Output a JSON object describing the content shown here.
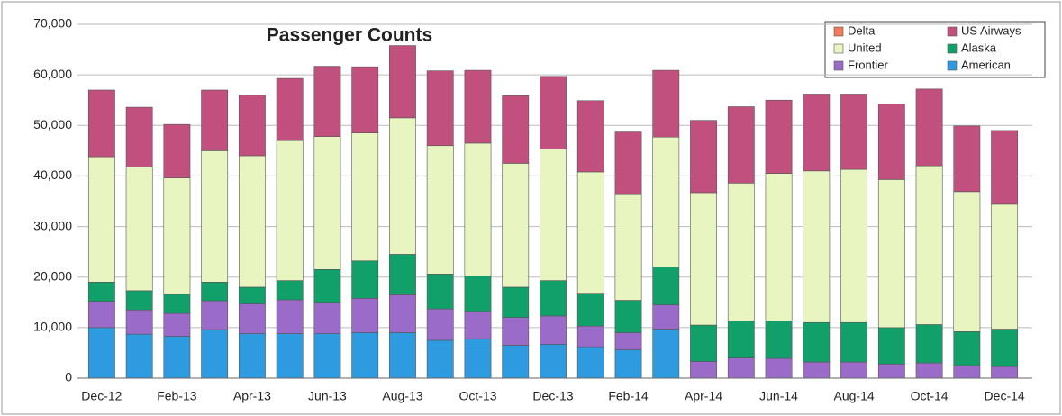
{
  "chart_data": {
    "type": "bar",
    "stacked": true,
    "title": "Passenger Counts",
    "categories": [
      "Dec-12",
      null,
      "Feb-13",
      null,
      "Apr-13",
      null,
      "Jun-13",
      null,
      "Aug-13",
      null,
      "Oct-13",
      null,
      "Dec-13",
      null,
      "Feb-14",
      null,
      "Apr-14",
      null,
      "Jun-14",
      null,
      "Aug-14",
      null,
      "Oct-14",
      null,
      "Dec-14"
    ],
    "series": [
      {
        "name": "American",
        "color": "#2e9be0",
        "values": [
          10000,
          8700,
          8300,
          9600,
          8800,
          8800,
          8800,
          9000,
          9000,
          7500,
          7800,
          6500,
          6700,
          6200,
          5600,
          9700,
          0,
          0,
          0,
          0,
          0,
          0,
          0,
          0,
          0
        ]
      },
      {
        "name": "Frontier",
        "color": "#9b6bc9",
        "values": [
          5200,
          4800,
          4500,
          5700,
          5900,
          6700,
          6200,
          6800,
          7500,
          6200,
          5400,
          5500,
          5600,
          4100,
          3400,
          4800,
          3300,
          4000,
          3900,
          3200,
          3200,
          2800,
          3000,
          2500,
          2300
        ]
      },
      {
        "name": "Alaska",
        "color": "#12a06a",
        "values": [
          3800,
          3800,
          3800,
          3700,
          3300,
          3800,
          6500,
          7400,
          8000,
          6900,
          7000,
          6000,
          7000,
          6500,
          6400,
          7500,
          7200,
          7300,
          7400,
          7800,
          7800,
          7200,
          7600,
          6700,
          7400
        ]
      },
      {
        "name": "United",
        "color": "#e8f5c0",
        "values": [
          24800,
          24500,
          23000,
          26000,
          26000,
          27700,
          26300,
          25300,
          27000,
          25400,
          26300,
          24500,
          26000,
          24000,
          20900,
          25700,
          26200,
          27300,
          29200,
          30000,
          30300,
          29300,
          31400,
          27700,
          24700
        ]
      },
      {
        "name": "US Airways",
        "color": "#c2507e",
        "values": [
          13200,
          11800,
          10600,
          12000,
          12000,
          12300,
          13900,
          13100,
          14300,
          14800,
          14400,
          13400,
          14400,
          14100,
          12400,
          13200,
          14300,
          15100,
          14500,
          15200,
          14900,
          14900,
          15200,
          13000,
          14600
        ]
      },
      {
        "name": "Delta",
        "color": "#f07c5a",
        "values": [
          0,
          0,
          0,
          0,
          0,
          0,
          0,
          0,
          0,
          0,
          0,
          0,
          0,
          0,
          0,
          0,
          0,
          0,
          0,
          0,
          0,
          0,
          0,
          0,
          0
        ]
      }
    ],
    "ylim": [
      0,
      70000
    ],
    "yticks": [
      0,
      {
        "value": 10000,
        "label": "10,000"
      },
      {
        "value": 20000,
        "label": "20,000"
      },
      {
        "value": 30000,
        "label": "30,000"
      },
      {
        "value": 40000,
        "label": "40,000"
      },
      {
        "value": 50000,
        "label": "50,000"
      },
      {
        "value": 60000,
        "label": "60,000"
      },
      {
        "value": 70000,
        "label": "70,000"
      }
    ],
    "grid": true,
    "legend": "upper right"
  }
}
